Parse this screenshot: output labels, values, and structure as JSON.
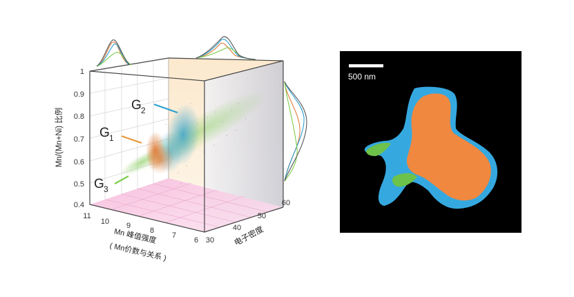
{
  "plot3d": {
    "yaxis_label": "Mn/(Mn+Ni) 比例",
    "y_ticks": [
      "1",
      "0.9",
      "0.8",
      "0.7",
      "0.6",
      "0.5",
      "0.4"
    ],
    "x_ticks": [
      "11",
      "10",
      "9",
      "8",
      "7",
      "6"
    ],
    "x_label_main": "Mn  峰值强度",
    "x_label_sub": "( Mn价数与关系 )",
    "z_ticks": [
      "30",
      "40",
      "50",
      "60"
    ],
    "z_label": "电子密度",
    "groups": [
      {
        "label": "G",
        "sub": "1",
        "color": "#e8973a"
      },
      {
        "label": "G",
        "sub": "2",
        "color": "#2f9fd0"
      },
      {
        "label": "G",
        "sub": "3",
        "color": "#7ccd4a"
      }
    ]
  },
  "micro": {
    "scale_label": "500 nm",
    "colors": {
      "orange": "#f0883f",
      "blue": "#36a8e0",
      "green": "#6cc24a",
      "background": "#000000"
    }
  }
}
